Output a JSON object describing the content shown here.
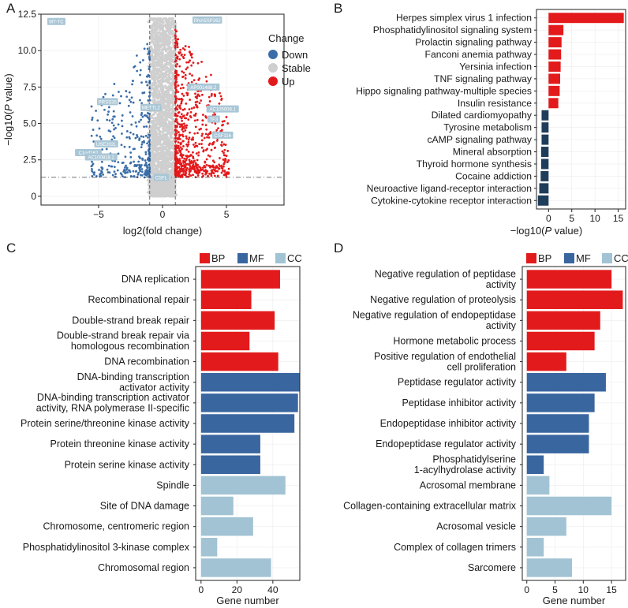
{
  "colors": {
    "down": "#3b6ea8",
    "stable": "#cfcfcf",
    "up": "#e31a1c",
    "bp": "#e31a1c",
    "mf": "#3a66a0",
    "cc": "#a1c3d4",
    "pathway_up": "#e31a1c",
    "pathway_down": "#1e3d5a",
    "label_box": "#a9c6d6"
  },
  "chart_data": [
    {
      "panel_label": "A",
      "type": "scatter",
      "title": "",
      "xlabel": "log2(fold change)",
      "ylabel_prefix": "−log10(",
      "ylabel_italic": "P",
      "ylabel_suffix": " value)",
      "xlim": [
        -9.5,
        9.5
      ],
      "ylim": [
        -0.6,
        12.5
      ],
      "xticks": [
        -5,
        0,
        5
      ],
      "xtick_labels": [
        "−5",
        "0",
        "5"
      ],
      "yticks": [
        0,
        2.5,
        5,
        7.5,
        10,
        12.5
      ],
      "ytick_labels": [
        "0",
        "2.5",
        "5.0",
        "7.5",
        "10.0",
        "12.5"
      ],
      "vlines": [
        -1,
        1
      ],
      "hline": 1.3,
      "legend": {
        "title": "Change",
        "entries": [
          {
            "label": "Down",
            "color": "#3b6ea8"
          },
          {
            "label": "Stable",
            "color": "#cfcfcf"
          },
          {
            "label": "Up",
            "color": "#e31a1c"
          }
        ]
      },
      "labeled_genes": [
        {
          "label": "MT-TC",
          "x": -8.3,
          "y": 12.0
        },
        {
          "label": "PRSS35",
          "x": -4.3,
          "y": 6.5
        },
        {
          "label": "USE202L",
          "x": -4.4,
          "y": 3.6
        },
        {
          "label": "C1orf162",
          "x": -5.8,
          "y": 3.0
        },
        {
          "label": "AC100818.2",
          "x": -4.8,
          "y": 2.7
        },
        {
          "label": "METTL2",
          "x": -0.9,
          "y": 6.1
        },
        {
          "label": "CSFL",
          "x": -0.1,
          "y": 1.3
        },
        {
          "label": "RNA5SP262",
          "x": 3.5,
          "y": 12.1
        },
        {
          "label": "AP001488.2",
          "x": 3.2,
          "y": 7.5
        },
        {
          "label": "AC105008.1",
          "x": 4.7,
          "y": 6.0
        },
        {
          "label": "TF3",
          "x": 4.0,
          "y": 5.3
        },
        {
          "label": "CSF116",
          "x": 4.7,
          "y": 4.2
        }
      ]
    },
    {
      "panel_label": "B",
      "type": "bar",
      "orientation": "horizontal",
      "xlabel_prefix": "−log10(",
      "xlabel_italic": "P",
      "xlabel_suffix": " value)",
      "xlim": [
        -2.6,
        16.6
      ],
      "xticks": [
        0,
        5,
        10,
        15
      ],
      "categories": [
        "Herpes simplex virus 1 infection",
        "Phosphatidylinositol signaling system",
        "Prolactin signaling pathway",
        "Fanconi anemia pathway",
        "Yersinia infection",
        "TNF signaling pathway",
        "Hippo signaling pathway-multiple species",
        "Insulin resistance",
        "Dilated cardiomyopathy",
        "Tyrosine metabolism",
        "cAMP signaling pathway",
        "Mineral absorption",
        "Thyroid hormone synthesis",
        "Cocaine addiction",
        "Neuroactive ligand-receptor interaction",
        "Cytokine-cytokine receptor interaction"
      ],
      "values": [
        16.2,
        3.2,
        2.8,
        2.7,
        2.6,
        2.5,
        2.4,
        2.1,
        -1.5,
        -1.5,
        -1.5,
        -1.6,
        -1.6,
        -1.7,
        -2.0,
        -2.3
      ]
    },
    {
      "panel_label": "C",
      "type": "bar",
      "orientation": "horizontal",
      "xlabel": "Gene number",
      "xlim": [
        -3,
        55
      ],
      "xticks": [
        0,
        20,
        40
      ],
      "legend": {
        "entries": [
          {
            "label": "BP",
            "color": "#e31a1c"
          },
          {
            "label": "MF",
            "color": "#3a66a0"
          },
          {
            "label": "CC",
            "color": "#a1c3d4"
          }
        ]
      },
      "categories": [
        [
          "DNA replication"
        ],
        [
          "Recombinational repair"
        ],
        [
          "Double-strand break repair"
        ],
        [
          "Double-strand break repair via",
          "homologous recombination"
        ],
        [
          "DNA recombination"
        ],
        [
          "DNA-binding transcription",
          "activator activity"
        ],
        [
          "DNA-binding transcription activator",
          "activity, RNA polymerase II-specific"
        ],
        [
          "Protein serine/threonine kinase activity"
        ],
        [
          "Protein threonine kinase activity"
        ],
        [
          "Protein serine kinase activity"
        ],
        [
          "Spindle"
        ],
        [
          "Site of DNA damage"
        ],
        [
          "Chromosome, centromeric region"
        ],
        [
          "Phosphatidylinositol 3-kinase complex"
        ],
        [
          "Chromosomal region"
        ]
      ],
      "groups": [
        "BP",
        "BP",
        "BP",
        "BP",
        "BP",
        "MF",
        "MF",
        "MF",
        "MF",
        "MF",
        "CC",
        "CC",
        "CC",
        "CC",
        "CC"
      ],
      "values": [
        44,
        28,
        41,
        27,
        43,
        55,
        54,
        52,
        33,
        33,
        47,
        18,
        29,
        9,
        39
      ]
    },
    {
      "panel_label": "D",
      "type": "bar",
      "orientation": "horizontal",
      "xlabel": "Gene number",
      "xlim": [
        -0.8,
        17.5
      ],
      "xticks": [
        0,
        5,
        10,
        15
      ],
      "legend": {
        "entries": [
          {
            "label": "BP",
            "color": "#e31a1c"
          },
          {
            "label": "MF",
            "color": "#3a66a0"
          },
          {
            "label": "CC",
            "color": "#a1c3d4"
          }
        ]
      },
      "categories": [
        [
          "Negative regulation of peptidase",
          "activity"
        ],
        [
          "Negative regulation of proteolysis"
        ],
        [
          "Negative regulation of endopeptidase",
          "activity"
        ],
        [
          "Hormone metabolic process"
        ],
        [
          "Positive regulation of endothelial",
          "cell proliferation"
        ],
        [
          "Peptidase regulator activity"
        ],
        [
          "Peptidase inhibitor activity"
        ],
        [
          "Endopeptidase inhibitor activity"
        ],
        [
          "Endopeptidase regulator activity"
        ],
        [
          "Phosphatidylserine",
          "1-acylhydrolase activity"
        ],
        [
          "Acrosomal membrane"
        ],
        [
          "Collagen-containing extracellular matrix"
        ],
        [
          "Acrosomal vesicle"
        ],
        [
          "Complex of collagen trimers"
        ],
        [
          "Sarcomere"
        ]
      ],
      "groups": [
        "BP",
        "BP",
        "BP",
        "BP",
        "BP",
        "MF",
        "MF",
        "MF",
        "MF",
        "MF",
        "CC",
        "CC",
        "CC",
        "CC",
        "CC"
      ],
      "values": [
        15,
        17,
        13,
        12,
        7,
        14,
        12,
        11,
        11,
        3,
        4,
        15,
        7,
        3,
        8
      ]
    }
  ]
}
